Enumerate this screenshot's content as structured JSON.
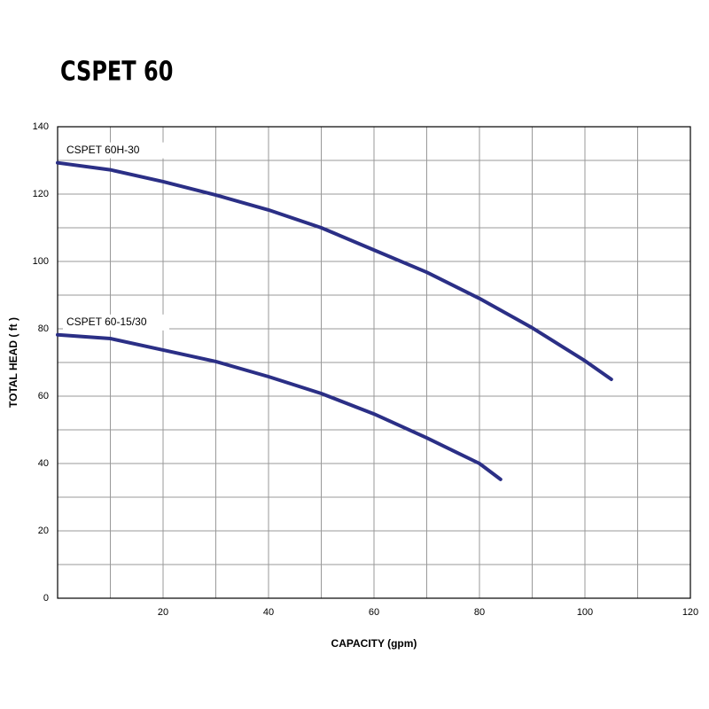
{
  "chart_data": {
    "type": "line",
    "title": "CSPET 60",
    "x_label": "CAPACITY (gpm)",
    "y_label": "TOTAL HEAD ( ft )",
    "xlim": [
      0,
      120
    ],
    "ylim": [
      0,
      140
    ],
    "xticks": [
      20,
      40,
      60,
      80,
      100,
      120
    ],
    "yticks": [
      0,
      20,
      40,
      60,
      80,
      100,
      120,
      140
    ],
    "xgrid": [
      0,
      10,
      20,
      30,
      40,
      50,
      60,
      70,
      80,
      90,
      100,
      110,
      120
    ],
    "ygrid": [
      0,
      10,
      20,
      30,
      40,
      50,
      60,
      70,
      80,
      90,
      100,
      110,
      120,
      130,
      140
    ],
    "series": [
      {
        "name": "CSPET 60H-30",
        "color": "#2b2f86",
        "x": [
          0,
          10,
          20,
          30,
          40,
          50,
          60,
          70,
          80,
          90,
          100,
          105
        ],
        "values": [
          129.3,
          127.2,
          123.7,
          119.7,
          115.3,
          110,
          103.4,
          96.8,
          89,
          80.3,
          70.5,
          65
        ]
      },
      {
        "name": "CSPET 60-15/30",
        "color": "#2b2f86",
        "x": [
          0,
          10,
          20,
          30,
          40,
          50,
          60,
          70,
          80,
          84
        ],
        "values": [
          78.2,
          77.1,
          73.7,
          70.3,
          65.8,
          60.8,
          54.7,
          47.6,
          40,
          35.3
        ]
      }
    ]
  }
}
